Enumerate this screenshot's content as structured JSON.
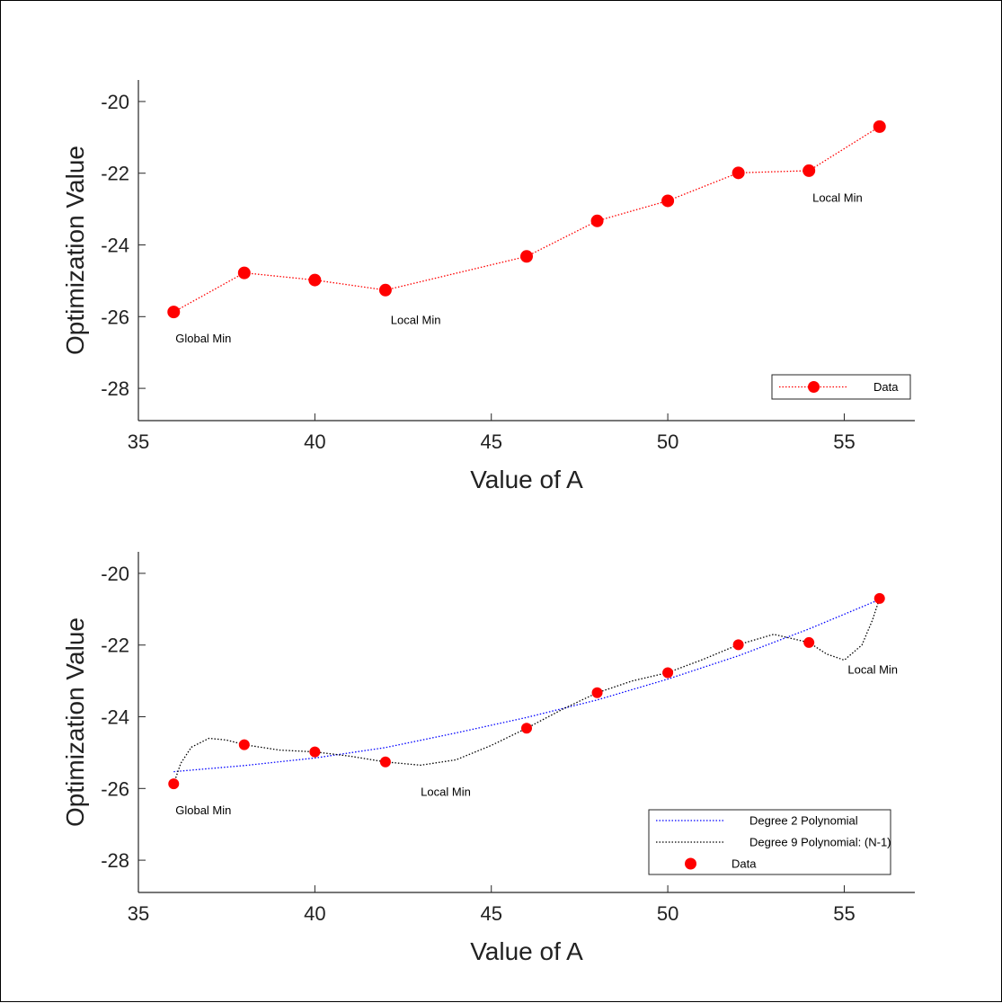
{
  "chart_data": [
    {
      "type": "line",
      "xlabel": "Value of A",
      "ylabel": "Optimization Value",
      "xlim": [
        35,
        57
      ],
      "ylim": [
        -28.9,
        -19.4
      ],
      "xticks": [
        35,
        40,
        45,
        50,
        55
      ],
      "yticks": [
        -20,
        -22,
        -24,
        -26,
        -28
      ],
      "grid": false,
      "legend_position": "bottom-right",
      "series": [
        {
          "name": "Data",
          "color": "#ff0000",
          "style": "dotted-with-markers",
          "x": [
            36,
            38,
            40,
            42,
            46,
            48,
            50,
            52,
            54,
            56
          ],
          "y": [
            -25.87,
            -24.78,
            -24.98,
            -25.26,
            -24.32,
            -23.33,
            -22.77,
            -21.99,
            -21.93,
            -20.7
          ]
        }
      ],
      "annotations": [
        {
          "text": "Global Min",
          "x": 36.05,
          "y": -26.72
        },
        {
          "text": "Local Min",
          "x": 42.15,
          "y": -26.2
        },
        {
          "text": "Local Min",
          "x": 54.1,
          "y": -22.8
        }
      ]
    },
    {
      "type": "line",
      "xlabel": "Value of A",
      "ylabel": "Optimization Value",
      "xlim": [
        35,
        57
      ],
      "ylim": [
        -28.9,
        -19.4
      ],
      "xticks": [
        35,
        40,
        45,
        50,
        55
      ],
      "yticks": [
        -20,
        -22,
        -24,
        -26,
        -28
      ],
      "grid": false,
      "legend_position": "bottom-right",
      "series": [
        {
          "name": "Degree 2 Polynomial",
          "color": "#0000ff",
          "style": "dotted",
          "x": [
            36,
            38,
            40,
            42,
            44,
            46,
            48,
            50,
            52,
            54,
            56
          ],
          "y": [
            -25.53,
            -25.36,
            -25.15,
            -24.86,
            -24.45,
            -24.02,
            -23.53,
            -22.95,
            -22.3,
            -21.55,
            -20.73
          ]
        },
        {
          "name": "Degree 9 Polynomial: (N-1)",
          "color": "#000000",
          "style": "dotted",
          "x": [
            36,
            36.2,
            36.5,
            37,
            37.5,
            38,
            39,
            40,
            41,
            42,
            43,
            44,
            45,
            46,
            47,
            48,
            49,
            50,
            51,
            52,
            53,
            54,
            54.5,
            55,
            55.5,
            55.8,
            56
          ],
          "y": [
            -25.87,
            -25.3,
            -24.85,
            -24.6,
            -24.65,
            -24.78,
            -24.93,
            -24.98,
            -25.1,
            -25.26,
            -25.35,
            -25.2,
            -24.8,
            -24.32,
            -23.8,
            -23.33,
            -23.0,
            -22.77,
            -22.4,
            -21.99,
            -21.7,
            -21.93,
            -22.25,
            -22.42,
            -22.0,
            -21.3,
            -20.7
          ]
        },
        {
          "name": "Data",
          "color": "#ff0000",
          "style": "markers",
          "x": [
            36,
            38,
            40,
            42,
            46,
            48,
            50,
            52,
            54,
            56
          ],
          "y": [
            -25.87,
            -24.78,
            -24.98,
            -25.26,
            -24.32,
            -23.33,
            -22.77,
            -21.99,
            -21.93,
            -20.7
          ]
        }
      ],
      "annotations": [
        {
          "text": "Global Min",
          "x": 36.05,
          "y": -26.72
        },
        {
          "text": "Local Min",
          "x": 43.0,
          "y": -26.2
        },
        {
          "text": "Local Min",
          "x": 55.1,
          "y": -22.8
        }
      ]
    }
  ]
}
